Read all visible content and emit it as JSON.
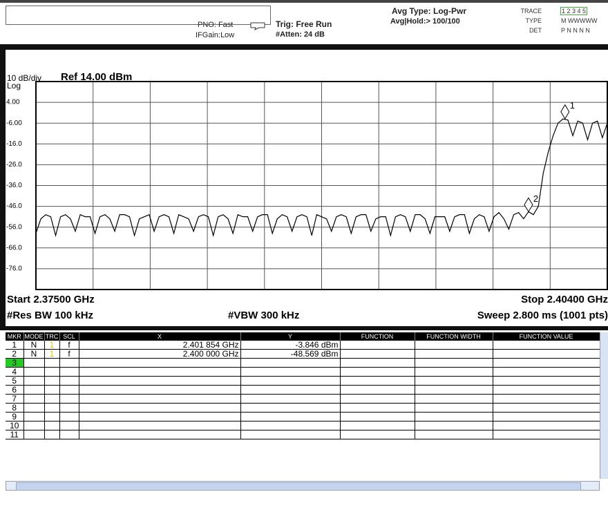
{
  "header": {
    "pno": "PNO: Fast",
    "ifgain": "IFGain:Low",
    "trig": "Trig: Free Run",
    "atten": "#Atten: 24 dB",
    "avg_type": "Avg Type: Log-Pwr",
    "avg_hold": "Avg|Hold:> 100/100",
    "trace_label": "TRACE",
    "trace_numbers": "1 2 3 4 5",
    "type_label": "TYPE",
    "type": "M WWWWW",
    "det_label": "DET",
    "det": "P N N N N"
  },
  "chart_data": {
    "type": "line",
    "scale_label": "10 dB/div",
    "ref_label": "Ref 14.00 dBm",
    "log_label": "Log",
    "start_label": "Start 2.37500 GHz",
    "stop_label": "Stop 2.40400 GHz",
    "rbw_label": "#Res BW 100 kHz",
    "vbw_label": "#VBW 300 kHz",
    "sweep_label": "Sweep  2.800 ms (1001 pts)",
    "color": "#000000",
    "grid": true,
    "xlim": [
      2.375,
      2.404
    ],
    "ylim": [
      -86,
      14
    ],
    "xticks": [
      2.375,
      2.3779,
      2.3808,
      2.3837,
      2.3866,
      2.3895,
      2.3924,
      2.3953,
      2.3982,
      2.4011,
      2.404
    ],
    "yticks": [
      {
        "value": 4,
        "label": "4.00"
      },
      {
        "value": -6,
        "label": "-6.00"
      },
      {
        "value": -16,
        "label": "-16.0"
      },
      {
        "value": -26,
        "label": "-26.0"
      },
      {
        "value": -36,
        "label": "-36.0"
      },
      {
        "value": -46,
        "label": "-46.0"
      },
      {
        "value": -56,
        "label": "-56.0"
      },
      {
        "value": -66,
        "label": "-66.0"
      },
      {
        "value": -76,
        "label": "-76.0"
      }
    ],
    "x": [
      2.375,
      2.37525,
      2.3755,
      2.37575,
      2.376,
      2.37625,
      2.3765,
      2.37675,
      2.377,
      2.37725,
      2.3775,
      2.37775,
      2.378,
      2.37825,
      2.3785,
      2.37875,
      2.379,
      2.37925,
      2.3795,
      2.37975,
      2.38,
      2.38025,
      2.3805,
      2.38075,
      2.381,
      2.38125,
      2.3815,
      2.38175,
      2.382,
      2.38225,
      2.3825,
      2.38275,
      2.383,
      2.38325,
      2.3835,
      2.38375,
      2.384,
      2.38425,
      2.3845,
      2.38475,
      2.385,
      2.38525,
      2.3855,
      2.38575,
      2.386,
      2.38625,
      2.3865,
      2.38675,
      2.387,
      2.38725,
      2.3875,
      2.38775,
      2.388,
      2.38825,
      2.3885,
      2.38875,
      2.389,
      2.38925,
      2.3895,
      2.38975,
      2.39,
      2.39025,
      2.3905,
      2.39075,
      2.391,
      2.39125,
      2.3915,
      2.39175,
      2.392,
      2.39225,
      2.3925,
      2.39275,
      2.393,
      2.39325,
      2.3935,
      2.39375,
      2.394,
      2.39425,
      2.3945,
      2.39475,
      2.395,
      2.39525,
      2.3955,
      2.39575,
      2.396,
      2.39625,
      2.3965,
      2.39675,
      2.397,
      2.39725,
      2.3975,
      2.39775,
      2.398,
      2.39825,
      2.3985,
      2.39875,
      2.399,
      2.39925,
      2.3995,
      2.39975,
      2.4,
      2.40025,
      2.4005,
      2.40075,
      2.401,
      2.40125,
      2.4015,
      2.40175,
      2.402,
      2.40225,
      2.4025,
      2.40275,
      2.403,
      2.40325,
      2.4035,
      2.40375,
      2.404
    ],
    "values": [
      -59,
      -52,
      -50,
      -51,
      -60,
      -51,
      -50,
      -52,
      -58,
      -50,
      -51,
      -51,
      -59,
      -51,
      -50,
      -52,
      -58,
      -50,
      -50,
      -51,
      -60,
      -52,
      -51,
      -50,
      -58,
      -51,
      -50,
      -51,
      -59,
      -50,
      -51,
      -52,
      -58,
      -51,
      -50,
      -51,
      -60,
      -51,
      -50,
      -52,
      -59,
      -50,
      -51,
      -51,
      -58,
      -51,
      -50,
      -50,
      -59,
      -52,
      -50,
      -51,
      -58,
      -51,
      -50,
      -51,
      -60,
      -50,
      -51,
      -52,
      -58,
      -51,
      -50,
      -51,
      -59,
      -51,
      -50,
      -50,
      -58,
      -52,
      -51,
      -51,
      -60,
      -51,
      -50,
      -51,
      -58,
      -50,
      -50,
      -52,
      -59,
      -51,
      -51,
      -51,
      -58,
      -51,
      -50,
      -50,
      -59,
      -52,
      -50,
      -51,
      -58,
      -51,
      -49,
      -52,
      -57,
      -50,
      -49,
      -52,
      -48.6,
      -50,
      -46,
      -30,
      -20,
      -12,
      -6,
      -4,
      -4.5,
      -12,
      -5,
      -6,
      -14,
      -6,
      -5,
      -13,
      -6
    ],
    "markers": [
      {
        "name": "1",
        "x": 2.401854,
        "y": -3.846
      },
      {
        "name": "2",
        "x": 2.4,
        "y": -48.569
      }
    ]
  },
  "marker_table": {
    "columns": [
      "MKR",
      "MODE",
      "TRC",
      "SCL",
      "X",
      "Y",
      "FUNCTION",
      "FUNCTION WIDTH",
      "FUNCTION VALUE"
    ],
    "rows": [
      {
        "mkr": "1",
        "mode": "N",
        "trc": "1",
        "scl": "f",
        "x": "2.401 854 GHz",
        "y": "-3.846 dBm"
      },
      {
        "mkr": "2",
        "mode": "N",
        "trc": "1",
        "scl": "f",
        "x": "2.400 000 GHz",
        "y": "-48.569 dBm"
      },
      {
        "mkr": "3"
      },
      {
        "mkr": "4"
      },
      {
        "mkr": "5"
      },
      {
        "mkr": "6"
      },
      {
        "mkr": "7"
      },
      {
        "mkr": "8"
      },
      {
        "mkr": "9"
      },
      {
        "mkr": "10"
      },
      {
        "mkr": "11"
      }
    ]
  }
}
